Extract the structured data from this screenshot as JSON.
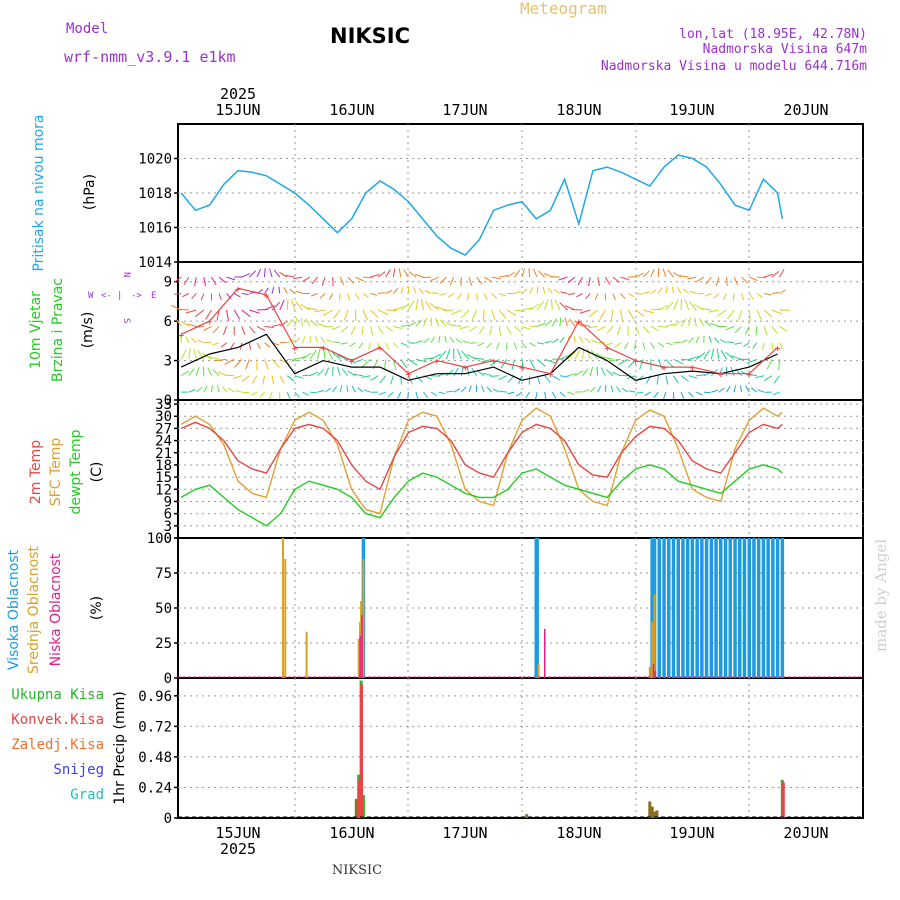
{
  "header": {
    "model_label": "Model",
    "model_name": "wrf-nmm_v3.9.1 e1km",
    "station": "NIKSIC",
    "meteogram": "Meteogram",
    "lonlat": "lon,lat (18.95E, 42.78N)",
    "elevation": "Nadmorska Visina 647m",
    "model_elevation": "Nadmorska Visina u modelu 644.716m",
    "footer_station": "NIKSIC",
    "watermark": "made by Angel",
    "year": "2025"
  },
  "colors": {
    "pressure": "#1ea8e6",
    "temp": "#e84545",
    "sfc": "#e0a030",
    "dewpt": "#22cc22",
    "high_cloud": "#1e9be0",
    "mid_cloud": "#dda020",
    "low_cloud": "#e0208a",
    "purple": "#9b30d0",
    "total_rain": "#22bb22",
    "conv_rain": "#e84545",
    "frozen": "#f07030",
    "snow": "#4040e0",
    "hail": "#20c0c0"
  },
  "x_axis": {
    "days": [
      "15JUN",
      "16JUN",
      "17JUN",
      "18JUN",
      "19JUN",
      "20JUN"
    ]
  },
  "panels": {
    "pressure": {
      "label": "Pritisak na nivou mora",
      "unit": "(hPa)",
      "ticks": [
        "1014",
        "1016",
        "1018",
        "1020"
      ]
    },
    "wind": {
      "label1": "10m Vjetar",
      "label2": "Brzina i Pravac",
      "unit": "(m/s)",
      "ticks": [
        "0",
        "3",
        "6",
        "9"
      ],
      "compass": {
        "w": "W",
        "e": "E",
        "s": "S",
        "n": "N"
      }
    },
    "temp": {
      "label1": "2m Temp",
      "label2": "SFC Temp",
      "label3": "dewpt Temp",
      "unit": "(C)",
      "ticks": [
        "0",
        "3",
        "6",
        "9",
        "12",
        "15",
        "18",
        "21",
        "24",
        "27",
        "30",
        "33"
      ]
    },
    "cloud": {
      "label1": "Visoka Oblacnost",
      "label2": "Srednja Oblacnost",
      "label3": "Niska Oblacnost",
      "unit": "(%)",
      "ticks": [
        "0",
        "25",
        "50",
        "75",
        "100"
      ]
    },
    "precip": {
      "legend": [
        "Ukupna Kisa",
        "Konvek.Kisa",
        "Zaledj.Kisa",
        "Snijeg",
        "Grad"
      ],
      "unit": "1hr Precip (mm)",
      "ticks": [
        "0",
        "0.24",
        "0.48",
        "0.72",
        "0.96"
      ]
    }
  },
  "chart_data": [
    {
      "type": "line",
      "title": "Pritisak na nivou mora",
      "ylabel": "(hPa)",
      "ylim": [
        1014,
        1022
      ],
      "x_hours": [
        0,
        3,
        6,
        9,
        12,
        15,
        18,
        21,
        24,
        27,
        30,
        33,
        36,
        39,
        42,
        45,
        48,
        51,
        54,
        57,
        60,
        63,
        66,
        69,
        72,
        75,
        78,
        81,
        84,
        87,
        90,
        93,
        96,
        99,
        102,
        105,
        108,
        111,
        114,
        117,
        120,
        123,
        126,
        127
      ],
      "series": [
        {
          "values": [
            1018,
            1017,
            1017.3,
            1018.5,
            1019.3,
            1019.2,
            1019,
            1018.5,
            1018,
            1017.3,
            1016.5,
            1015.7,
            1016.5,
            1018,
            1018.7,
            1018.2,
            1017.5,
            1016.5,
            1015.5,
            1014.8,
            1014.4,
            1015.3,
            1017,
            1017.3,
            1017.5,
            1016.5,
            1017,
            1018.8,
            1016.2,
            1019.3,
            1019.5,
            1019.2,
            1018.8,
            1018.4,
            1019.5,
            1020.2,
            1020,
            1019.5,
            1018.5,
            1017.3,
            1017,
            1018.8,
            1018,
            1016.5
          ]
        }
      ]
    },
    {
      "type": "line",
      "title": "10m Vjetar",
      "ylabel": "(m/s)",
      "ylim": [
        0,
        10.5
      ],
      "x_hours": [
        0,
        6,
        12,
        18,
        24,
        30,
        36,
        42,
        48,
        54,
        60,
        66,
        72,
        78,
        84,
        90,
        96,
        102,
        108,
        114,
        120,
        126
      ],
      "series": [
        {
          "values": [
            2.5,
            3.5,
            4,
            5,
            2,
            3,
            2.5,
            2.5,
            1.5,
            2,
            2,
            2.5,
            1.5,
            2,
            4,
            3,
            1.5,
            2,
            2.2,
            2,
            2.5,
            3.5
          ]
        },
        {
          "values": [
            5,
            6,
            8.5,
            8,
            4,
            4,
            3,
            4,
            2,
            3,
            2.5,
            3,
            2.5,
            2,
            6,
            4,
            3,
            2.5,
            2.5,
            2,
            2,
            4
          ]
        }
      ]
    },
    {
      "type": "line",
      "title": "2m Temp / SFC Temp / dewpt Temp",
      "ylabel": "(C)",
      "ylim": [
        0,
        34
      ],
      "x_hours": [
        0,
        3,
        6,
        9,
        12,
        15,
        18,
        21,
        24,
        27,
        30,
        33,
        36,
        39,
        42,
        45,
        48,
        51,
        54,
        57,
        60,
        63,
        66,
        69,
        72,
        75,
        78,
        81,
        84,
        87,
        90,
        93,
        96,
        99,
        102,
        105,
        108,
        111,
        114,
        117,
        120,
        123,
        126,
        127
      ],
      "series": [
        {
          "name": "2m Temp",
          "values": [
            27,
            28.5,
            27,
            24,
            19,
            17,
            16,
            22,
            27,
            28,
            27,
            24,
            18,
            14,
            12,
            20,
            26,
            27.5,
            27,
            24,
            18,
            16,
            15,
            21,
            26,
            28,
            27,
            24,
            18,
            15.5,
            15,
            21,
            25,
            27.5,
            27,
            24,
            19,
            17,
            16,
            21,
            26,
            28,
            27,
            28
          ]
        },
        {
          "name": "SFC Temp",
          "values": [
            28,
            30,
            28,
            23,
            14,
            11,
            10,
            22,
            29,
            31,
            29,
            23,
            12,
            7,
            6,
            20,
            29,
            31,
            30,
            23,
            12,
            9,
            8,
            21,
            29,
            32,
            30,
            22,
            12,
            9,
            8,
            21,
            29,
            31.5,
            30,
            22,
            12,
            10,
            9,
            22,
            29,
            32,
            30,
            31
          ]
        },
        {
          "name": "dewpt Temp",
          "values": [
            10,
            12,
            13,
            10,
            7,
            5,
            3,
            6,
            12,
            14,
            13,
            12,
            10,
            6,
            5,
            10,
            14,
            16,
            15,
            13,
            11,
            10,
            10,
            12,
            16,
            17,
            15,
            13,
            12,
            11,
            10,
            14,
            17,
            18,
            17,
            14,
            13,
            12,
            11,
            14,
            17,
            18,
            17,
            16
          ]
        }
      ]
    },
    {
      "type": "bar",
      "title": "Oblacnost",
      "ylabel": "(%)",
      "ylim": [
        0,
        100
      ],
      "series": [
        {
          "name": "Visoka Oblacnost",
          "x_hours": [
            38,
            38.5,
            75,
            75.2,
            99.5,
            100,
            101,
            102,
            103,
            104,
            105,
            106,
            107,
            108,
            109,
            110,
            111,
            112,
            113,
            114,
            115,
            116,
            117,
            118,
            119,
            120,
            121,
            122,
            123,
            124,
            125,
            126,
            127
          ],
          "values": [
            40,
            100,
            100,
            100,
            100,
            100,
            100,
            100,
            100,
            100,
            100,
            100,
            100,
            100,
            100,
            100,
            100,
            100,
            100,
            100,
            100,
            100,
            100,
            100,
            100,
            100,
            100,
            100,
            100,
            100,
            100,
            100,
            100
          ]
        },
        {
          "name": "Srednja Oblacnost",
          "x_hours": [
            21.5,
            22,
            26.5,
            37.5,
            38,
            38.5,
            75.5,
            99,
            99.5,
            100
          ],
          "values": [
            100,
            85,
            33,
            28,
            55,
            85,
            10,
            8,
            40,
            60
          ]
        },
        {
          "name": "Niska Oblacnost",
          "x_hours": [
            37.8,
            38.2,
            76.8,
            99.8,
            100.2
          ],
          "values": [
            30,
            45,
            35,
            10,
            5
          ]
        }
      ]
    },
    {
      "type": "bar",
      "title": "1hr Precip",
      "ylabel": "1hr Precip (mm)",
      "ylim": [
        0,
        1.1
      ],
      "series": [
        {
          "name": "Ukupna Kisa",
          "x_hours": [
            37,
            37.5,
            38,
            38.5,
            73,
            99,
            99.5,
            100,
            100.5,
            127
          ],
          "values": [
            0.15,
            0.34,
            1.08,
            0.18,
            0.03,
            0.13,
            0.09,
            0.05,
            0.06,
            0.3
          ]
        },
        {
          "name": "Konvek.Kisa",
          "x_hours": [
            37.6,
            38.1,
            127.2
          ],
          "values": [
            0.3,
            1.05,
            0.28
          ]
        }
      ]
    }
  ]
}
